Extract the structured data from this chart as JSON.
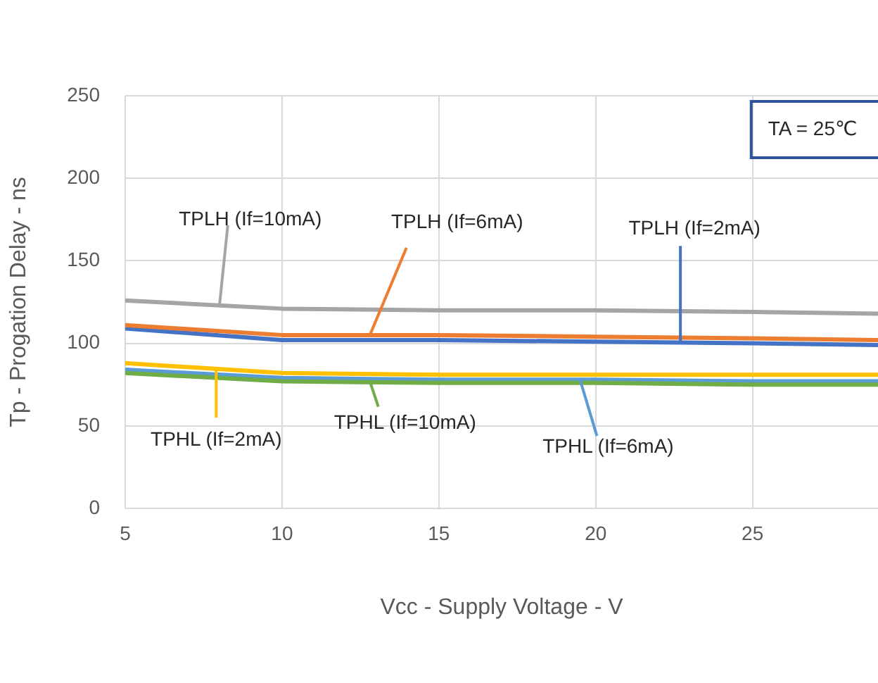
{
  "chart_data": {
    "type": "line",
    "xlabel": "Vcc - Supply Voltage - V",
    "ylabel": "Tp - Progation Delay - ns",
    "x": [
      5,
      10,
      15,
      20,
      25,
      29
    ],
    "series": [
      {
        "color": "#a5a5a5",
        "values": [
          126,
          121,
          120,
          120,
          119,
          118
        ]
      },
      {
        "color": "#ed7d31",
        "values": [
          111,
          105,
          105,
          104,
          103,
          102
        ]
      },
      {
        "color": "#4472c4",
        "values": [
          109,
          102,
          102,
          101,
          100,
          99
        ]
      },
      {
        "color": "#ffc000",
        "values": [
          88,
          82,
          81,
          81,
          81,
          81
        ]
      },
      {
        "color": "#70ad47",
        "values": [
          82,
          77,
          76,
          76,
          75,
          75
        ]
      },
      {
        "color": "#5b9bd5",
        "values": [
          84,
          79,
          78,
          78,
          77,
          77
        ]
      }
    ],
    "annotations": [
      {
        "text": "TPLH (If=10mA)",
        "x": 8,
        "y": 122
      },
      {
        "text": "TPLH (If=6mA)",
        "x": 12.8,
        "y": 105
      },
      {
        "text": "TPLH (If=2mA)",
        "x": 22.7,
        "y": 101
      },
      {
        "text": "TPHL (If=2mA)",
        "x": 7.9,
        "y": 84
      },
      {
        "text": "TPHL (If=10mA)",
        "x": 12.8,
        "y": 77
      },
      {
        "text": "TPHL (If=6mA)",
        "x": 19.5,
        "y": 78
      },
      "TA = 25℃"
    ],
    "xlim": [
      5,
      29
    ],
    "xticks": [
      5,
      10,
      15,
      20,
      25
    ],
    "ylim": [
      0,
      250
    ],
    "yticks": [
      0,
      50,
      100,
      150,
      200,
      250
    ],
    "grid": true,
    "legend": false,
    "marker": "none",
    "line_style": "solid"
  }
}
